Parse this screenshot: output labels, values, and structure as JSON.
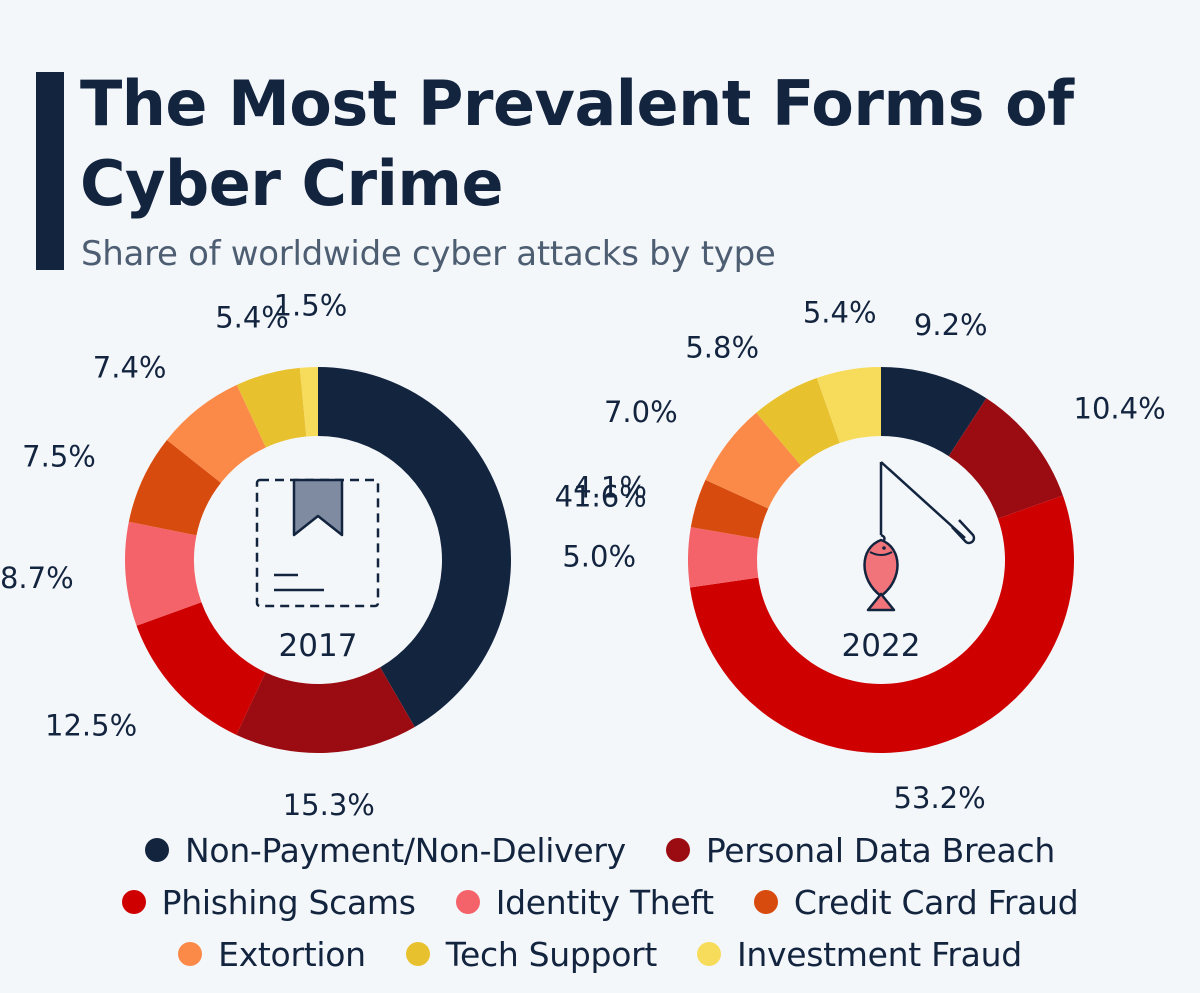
{
  "header": {
    "title": "The Most Prevalent Forms of Cyber Crime",
    "subtitle": "Share of worldwide cyber attacks by type"
  },
  "chart_data": [
    {
      "type": "pie",
      "style": "donut",
      "center_label": "2017",
      "center_icon": "bookmark-document-icon",
      "categories": [
        "Non-Payment/Non-Delivery",
        "Personal Data Breach",
        "Phishing Scams",
        "Identity Theft",
        "Credit Card Fraud",
        "Extortion",
        "Tech Support",
        "Investment Fraud"
      ],
      "values": [
        41.6,
        15.3,
        12.5,
        8.7,
        7.5,
        7.4,
        5.4,
        1.5
      ],
      "labels": [
        "41.6%",
        "15.3%",
        "12.5%",
        "8.7%",
        "7.5%",
        "7.4%",
        "5.4%",
        "1.5%"
      ]
    },
    {
      "type": "pie",
      "style": "donut",
      "center_label": "2022",
      "center_icon": "fishing-rod-icon",
      "categories": [
        "Non-Payment/Non-Delivery",
        "Personal Data Breach",
        "Phishing Scams",
        "Identity Theft",
        "Credit Card Fraud",
        "Extortion",
        "Tech Support",
        "Investment Fraud"
      ],
      "values": [
        9.2,
        10.4,
        53.2,
        5.0,
        4.1,
        7.0,
        5.8,
        5.4
      ],
      "labels": [
        "9.2%",
        "10.4%",
        "53.2%",
        "5.0%",
        "4.1%",
        "7.0%",
        "5.8%",
        "5.4%"
      ]
    }
  ],
  "legend": {
    "placement": "bottom",
    "rows": [
      [
        {
          "label": "Non-Payment/Non-Delivery",
          "color": "#13243f"
        },
        {
          "label": "Personal Data Breach",
          "color": "#9b0c12"
        }
      ],
      [
        {
          "label": "Phishing Scams",
          "color": "#cf0000"
        },
        {
          "label": "Identity Theft",
          "color": "#f4636a"
        },
        {
          "label": "Credit Card Fraud",
          "color": "#d84b0e"
        }
      ],
      [
        {
          "label": "Extortion",
          "color": "#fb8a48"
        },
        {
          "label": "Tech Support",
          "color": "#e8c12f"
        },
        {
          "label": "Investment Fraud",
          "color": "#f7dc5c"
        }
      ]
    ]
  }
}
